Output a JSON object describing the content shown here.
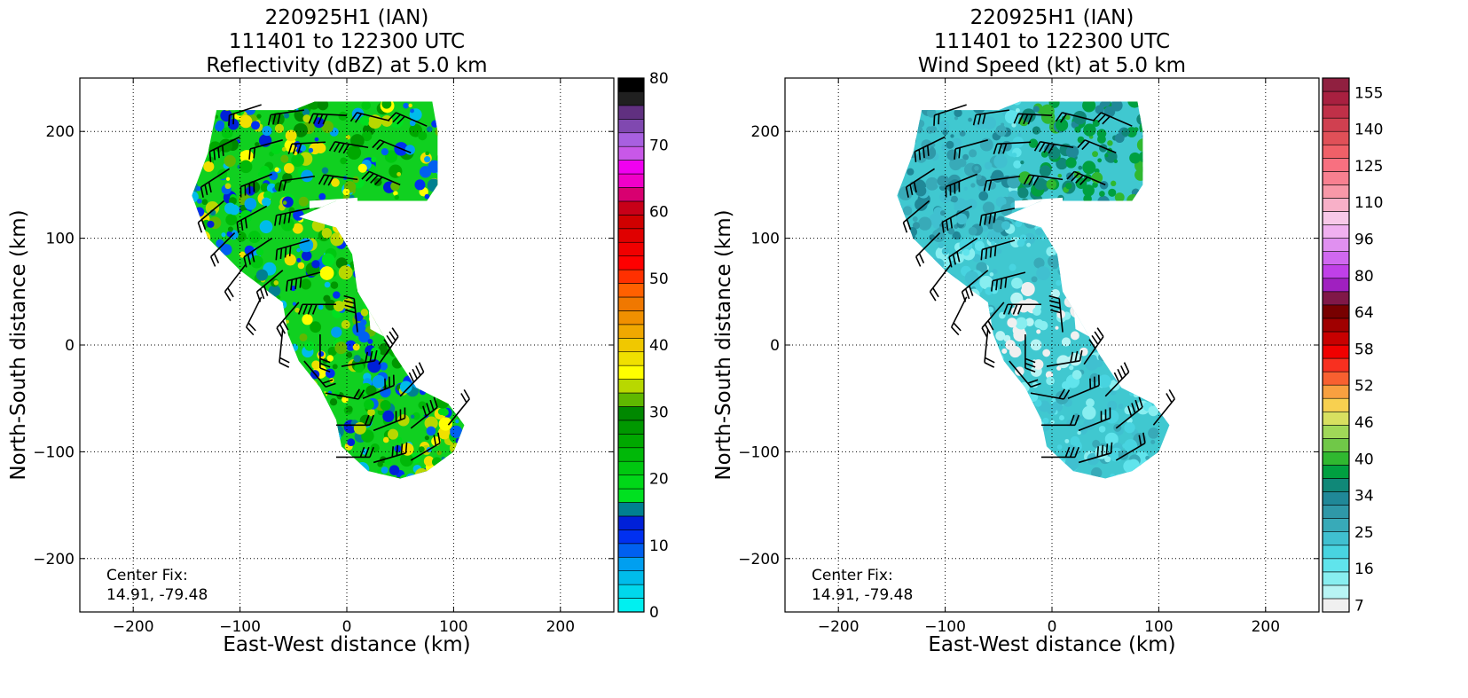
{
  "chart_data": [
    {
      "type": "heatmap",
      "title_lines": [
        "220925H1 (IAN)",
        "111401 to 122300 UTC",
        "Reflectivity (dBZ) at 5.0 km"
      ],
      "xlabel": "East-West distance (km)",
      "ylabel": "North-South distance (km)",
      "xlim": [
        -250,
        250
      ],
      "ylim": [
        -250,
        250
      ],
      "xticks": [
        -200,
        -100,
        0,
        100,
        200
      ],
      "yticks": [
        -200,
        -100,
        0,
        100,
        200
      ],
      "grid": true,
      "annotation": [
        "Center Fix:",
        "14.91, -79.48"
      ],
      "colorbar": {
        "min": 0,
        "max": 80,
        "ticks": [
          0,
          10,
          20,
          30,
          40,
          50,
          60,
          70,
          80
        ],
        "colors": [
          "#00f0f0",
          "#00d8ec",
          "#00bcea",
          "#009ff0",
          "#0060f0",
          "#0030f0",
          "#0020d8",
          "#008090",
          "#00e020",
          "#00d818",
          "#00c810",
          "#00b808",
          "#00a800",
          "#009800",
          "#008800",
          "#60b800",
          "#b8d800",
          "#ffff00",
          "#f0e000",
          "#f0c800",
          "#f0a800",
          "#f09000",
          "#f07800",
          "#ff6000",
          "#ff3000",
          "#ff0000",
          "#f00000",
          "#e00000",
          "#d00000",
          "#c80018",
          "#d80070",
          "#f000c8",
          "#f000f0",
          "#c858e8",
          "#a860e0",
          "#8048b0",
          "#603080",
          "#202020",
          "#000000"
        ]
      }
    },
    {
      "type": "heatmap",
      "title_lines": [
        "220925H1 (IAN)",
        "111401 to 122300 UTC",
        "Wind Speed (kt) at 5.0 km"
      ],
      "xlabel": "East-West distance (km)",
      "ylabel": "North-South distance (km)",
      "xlim": [
        -250,
        250
      ],
      "ylim": [
        -250,
        250
      ],
      "xticks": [
        -200,
        -100,
        0,
        100,
        200
      ],
      "yticks": [
        -200,
        -100,
        0,
        100,
        200
      ],
      "grid": true,
      "annotation": [
        "Center Fix:",
        "14.91, -79.48"
      ],
      "colorbar": {
        "ticks": [
          7,
          16,
          25,
          34,
          40,
          46,
          52,
          58,
          64,
          80,
          96,
          110,
          125,
          140,
          155
        ],
        "colors": [
          "#f0f0f0",
          "#b8f4f4",
          "#88eef0",
          "#60e4ec",
          "#48d4e0",
          "#40c0d0",
          "#38aab8",
          "#2f98a8",
          "#208898",
          "#108878",
          "#00a040",
          "#30b830",
          "#70c848",
          "#a0d858",
          "#d8e060",
          "#f8d050",
          "#f8a040",
          "#f86030",
          "#f83020",
          "#f00000",
          "#c80000",
          "#a00000",
          "#780000",
          "#801848",
          "#a020c0",
          "#c040e8",
          "#d068f0",
          "#e090f0",
          "#f0b0f0",
          "#f8c8e8",
          "#f8b0c8",
          "#f898a8",
          "#f88090",
          "#f87080",
          "#f06068",
          "#e05058",
          "#d04050",
          "#c03048",
          "#a82040",
          "#902040"
        ]
      }
    }
  ]
}
